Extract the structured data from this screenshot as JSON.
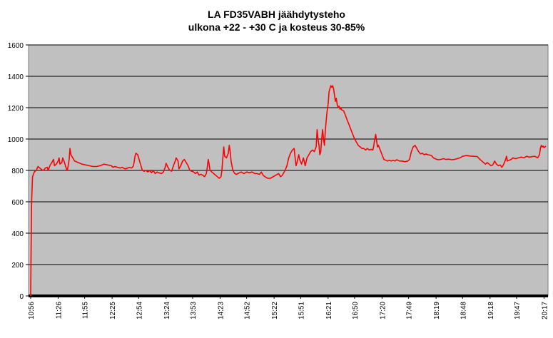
{
  "chart_data": {
    "type": "line",
    "title": "LA FD35VABH jäähdytysteho",
    "subtitle": "ulkona +22 - +30 C ja kosteus 30-85%",
    "xlabel": "",
    "ylabel": "",
    "ylim": [
      0,
      1600
    ],
    "yticks": [
      0,
      200,
      400,
      600,
      800,
      1000,
      1200,
      1400,
      1600
    ],
    "xlim": [
      0,
      563
    ],
    "xticks": [
      {
        "t": 0,
        "label": "10:56"
      },
      {
        "t": 30,
        "label": "11:26"
      },
      {
        "t": 59,
        "label": "11:55"
      },
      {
        "t": 89,
        "label": "12:25"
      },
      {
        "t": 118,
        "label": "12:54"
      },
      {
        "t": 148,
        "label": "13:24"
      },
      {
        "t": 177,
        "label": "13:53"
      },
      {
        "t": 207,
        "label": "14:23"
      },
      {
        "t": 236,
        "label": "14:52"
      },
      {
        "t": 266,
        "label": "15:22"
      },
      {
        "t": 295,
        "label": "15:51"
      },
      {
        "t": 325,
        "label": "16:21"
      },
      {
        "t": 354,
        "label": "16:50"
      },
      {
        "t": 384,
        "label": "17:20"
      },
      {
        "t": 413,
        "label": "17:49"
      },
      {
        "t": 443,
        "label": "18:19"
      },
      {
        "t": 472,
        "label": "18:48"
      },
      {
        "t": 502,
        "label": "19:18"
      },
      {
        "t": 531,
        "label": "19:47"
      },
      {
        "t": 561,
        "label": "20:17"
      }
    ],
    "grid": true,
    "legend": "none",
    "series": [
      {
        "color": "#ff0000",
        "points": [
          [
            0,
            0
          ],
          [
            0.5,
            300
          ],
          [
            1,
            600
          ],
          [
            2,
            760
          ],
          [
            4,
            790
          ],
          [
            6,
            800
          ],
          [
            8,
            825
          ],
          [
            10,
            815
          ],
          [
            12,
            805
          ],
          [
            14,
            800
          ],
          [
            16,
            815
          ],
          [
            18,
            820
          ],
          [
            19,
            800
          ],
          [
            21,
            830
          ],
          [
            23,
            850
          ],
          [
            25,
            870
          ],
          [
            26,
            830
          ],
          [
            28,
            840
          ],
          [
            30,
            860
          ],
          [
            31,
            880
          ],
          [
            32,
            840
          ],
          [
            34,
            850
          ],
          [
            35,
            880
          ],
          [
            37,
            850
          ],
          [
            39,
            810
          ],
          [
            40,
            800
          ],
          [
            41,
            830
          ],
          [
            42,
            870
          ],
          [
            43,
            940
          ],
          [
            44,
            900
          ],
          [
            46,
            880
          ],
          [
            48,
            860
          ],
          [
            52,
            850
          ],
          [
            56,
            840
          ],
          [
            60,
            835
          ],
          [
            64,
            830
          ],
          [
            68,
            825
          ],
          [
            72,
            825
          ],
          [
            76,
            830
          ],
          [
            80,
            840
          ],
          [
            84,
            835
          ],
          [
            88,
            830
          ],
          [
            90,
            820
          ],
          [
            92,
            825
          ],
          [
            95,
            820
          ],
          [
            98,
            815
          ],
          [
            100,
            820
          ],
          [
            103,
            810
          ],
          [
            106,
            815
          ],
          [
            108,
            820
          ],
          [
            110,
            815
          ],
          [
            112,
            825
          ],
          [
            113,
            850
          ],
          [
            114,
            890
          ],
          [
            115,
            910
          ],
          [
            117,
            900
          ],
          [
            118,
            880
          ],
          [
            120,
            840
          ],
          [
            122,
            800
          ],
          [
            124,
            795
          ],
          [
            126,
            800
          ],
          [
            128,
            790
          ],
          [
            130,
            800
          ],
          [
            132,
            785
          ],
          [
            134,
            800
          ],
          [
            136,
            780
          ],
          [
            138,
            790
          ],
          [
            140,
            785
          ],
          [
            143,
            780
          ],
          [
            145,
            790
          ],
          [
            147,
            820
          ],
          [
            148,
            845
          ],
          [
            150,
            820
          ],
          [
            152,
            800
          ],
          [
            154,
            795
          ],
          [
            156,
            830
          ],
          [
            158,
            860
          ],
          [
            159,
            880
          ],
          [
            161,
            860
          ],
          [
            162,
            810
          ],
          [
            164,
            830
          ],
          [
            166,
            860
          ],
          [
            168,
            870
          ],
          [
            170,
            850
          ],
          [
            172,
            830
          ],
          [
            174,
            800
          ],
          [
            176,
            795
          ],
          [
            178,
            790
          ],
          [
            180,
            780
          ],
          [
            182,
            790
          ],
          [
            184,
            770
          ],
          [
            186,
            775
          ],
          [
            188,
            770
          ],
          [
            190,
            760
          ],
          [
            192,
            780
          ],
          [
            193,
            820
          ],
          [
            194,
            870
          ],
          [
            195,
            840
          ],
          [
            196,
            800
          ],
          [
            198,
            790
          ],
          [
            200,
            780
          ],
          [
            202,
            770
          ],
          [
            204,
            760
          ],
          [
            206,
            750
          ],
          [
            208,
            760
          ],
          [
            209,
            800
          ],
          [
            210,
            880
          ],
          [
            211,
            950
          ],
          [
            212,
            890
          ],
          [
            214,
            880
          ],
          [
            216,
            910
          ],
          [
            217,
            960
          ],
          [
            218,
            920
          ],
          [
            219,
            860
          ],
          [
            221,
            800
          ],
          [
            223,
            780
          ],
          [
            225,
            775
          ],
          [
            228,
            785
          ],
          [
            230,
            790
          ],
          [
            233,
            780
          ],
          [
            236,
            790
          ],
          [
            239,
            785
          ],
          [
            242,
            790
          ],
          [
            245,
            780
          ],
          [
            247,
            780
          ],
          [
            250,
            775
          ],
          [
            252,
            790
          ],
          [
            254,
            770
          ],
          [
            256,
            760
          ],
          [
            259,
            750
          ],
          [
            262,
            750
          ],
          [
            265,
            760
          ],
          [
            268,
            770
          ],
          [
            271,
            780
          ],
          [
            273,
            760
          ],
          [
            275,
            770
          ],
          [
            278,
            800
          ],
          [
            280,
            830
          ],
          [
            282,
            880
          ],
          [
            284,
            910
          ],
          [
            286,
            930
          ],
          [
            288,
            940
          ],
          [
            289,
            880
          ],
          [
            290,
            830
          ],
          [
            291,
            850
          ],
          [
            293,
            900
          ],
          [
            294,
            870
          ],
          [
            296,
            840
          ],
          [
            298,
            880
          ],
          [
            300,
            830
          ],
          [
            302,
            880
          ],
          [
            304,
            900
          ],
          [
            306,
            920
          ],
          [
            308,
            930
          ],
          [
            310,
            920
          ],
          [
            312,
            950
          ],
          [
            313,
            1060
          ],
          [
            314,
            1000
          ],
          [
            315,
            960
          ],
          [
            316,
            900
          ],
          [
            317,
            920
          ],
          [
            318,
            1000
          ],
          [
            319,
            1060
          ],
          [
            320,
            1000
          ],
          [
            321,
            960
          ],
          [
            322,
            1050
          ],
          [
            323,
            1120
          ],
          [
            324,
            1180
          ],
          [
            325,
            1220
          ],
          [
            326,
            1300
          ],
          [
            327,
            1320
          ],
          [
            328,
            1340
          ],
          [
            329,
            1330
          ],
          [
            330,
            1340
          ],
          [
            331,
            1320
          ],
          [
            332,
            1280
          ],
          [
            333,
            1240
          ],
          [
            334,
            1260
          ],
          [
            335,
            1220
          ],
          [
            336,
            1200
          ],
          [
            337,
            1210
          ],
          [
            338,
            1190
          ],
          [
            339,
            1200
          ],
          [
            340,
            1185
          ],
          [
            342,
            1180
          ],
          [
            344,
            1150
          ],
          [
            346,
            1120
          ],
          [
            348,
            1090
          ],
          [
            350,
            1060
          ],
          [
            352,
            1030
          ],
          [
            354,
            1000
          ],
          [
            356,
            980
          ],
          [
            358,
            960
          ],
          [
            360,
            950
          ],
          [
            362,
            940
          ],
          [
            364,
            940
          ],
          [
            366,
            930
          ],
          [
            368,
            940
          ],
          [
            370,
            930
          ],
          [
            372,
            935
          ],
          [
            374,
            930
          ],
          [
            375,
            960
          ],
          [
            376,
            1000
          ],
          [
            377,
            1030
          ],
          [
            378,
            990
          ],
          [
            379,
            950
          ],
          [
            380,
            960
          ],
          [
            382,
            930
          ],
          [
            384,
            900
          ],
          [
            386,
            870
          ],
          [
            388,
            865
          ],
          [
            390,
            860
          ],
          [
            392,
            865
          ],
          [
            394,
            860
          ],
          [
            396,
            865
          ],
          [
            398,
            860
          ],
          [
            400,
            868
          ],
          [
            403,
            860
          ],
          [
            406,
            860
          ],
          [
            409,
            855
          ],
          [
            412,
            860
          ],
          [
            414,
            870
          ],
          [
            416,
            920
          ],
          [
            418,
            950
          ],
          [
            420,
            960
          ],
          [
            422,
            940
          ],
          [
            424,
            920
          ],
          [
            426,
            905
          ],
          [
            428,
            910
          ],
          [
            430,
            900
          ],
          [
            432,
            905
          ],
          [
            434,
            900
          ],
          [
            436,
            898
          ],
          [
            438,
            895
          ],
          [
            440,
            880
          ],
          [
            442,
            875
          ],
          [
            444,
            870
          ],
          [
            446,
            868
          ],
          [
            448,
            870
          ],
          [
            451,
            875
          ],
          [
            454,
            870
          ],
          [
            457,
            872
          ],
          [
            460,
            868
          ],
          [
            463,
            870
          ],
          [
            466,
            875
          ],
          [
            469,
            880
          ],
          [
            472,
            890
          ],
          [
            476,
            895
          ],
          [
            480,
            892
          ],
          [
            484,
            890
          ],
          [
            488,
            888
          ],
          [
            491,
            870
          ],
          [
            493,
            860
          ],
          [
            495,
            850
          ],
          [
            497,
            840
          ],
          [
            499,
            850
          ],
          [
            501,
            840
          ],
          [
            503,
            830
          ],
          [
            505,
            835
          ],
          [
            507,
            860
          ],
          [
            509,
            840
          ],
          [
            511,
            830
          ],
          [
            513,
            835
          ],
          [
            515,
            820
          ],
          [
            517,
            840
          ],
          [
            519,
            870
          ],
          [
            520,
            890
          ],
          [
            521,
            860
          ],
          [
            523,
            865
          ],
          [
            525,
            870
          ],
          [
            527,
            880
          ],
          [
            530,
            875
          ],
          [
            533,
            880
          ],
          [
            536,
            885
          ],
          [
            539,
            880
          ],
          [
            542,
            890
          ],
          [
            545,
            885
          ],
          [
            548,
            888
          ],
          [
            551,
            890
          ],
          [
            554,
            880
          ],
          [
            556,
            900
          ],
          [
            557,
            940
          ],
          [
            558,
            960
          ],
          [
            559,
            950
          ],
          [
            560,
            955
          ],
          [
            561,
            945
          ],
          [
            563,
            955
          ]
        ]
      }
    ]
  }
}
